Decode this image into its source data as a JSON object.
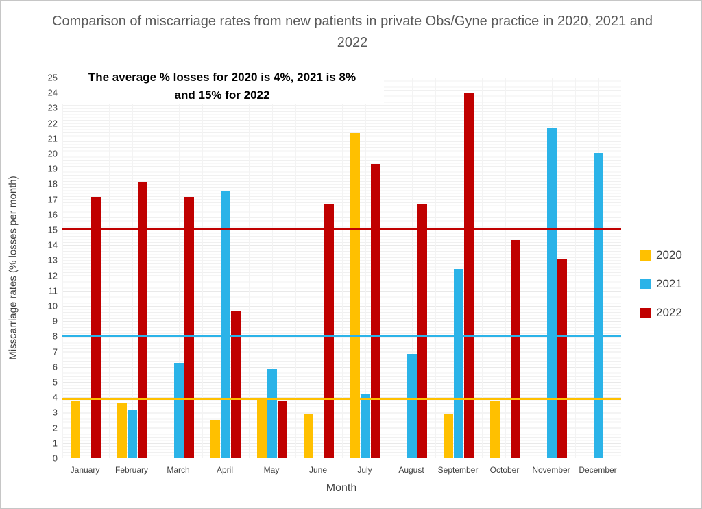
{
  "title": "Comparison of miscarriage rates from new patients in private Obs/Gyne practice in 2020, 2021 and 2022",
  "annotation": {
    "line1": "The average % losses for 2020 is 4%, 2021 is 8%",
    "line2": "and 15% for 2022"
  },
  "xlabel": "Month",
  "ylabel": "Misscarriage rates (% losses per month)",
  "legend": [
    {
      "label": "2020",
      "color": "#FFC000"
    },
    {
      "label": "2021",
      "color": "#2BB3E8"
    },
    {
      "label": "2022",
      "color": "#C00000"
    }
  ],
  "chart_data": {
    "type": "bar",
    "title": "Comparison of miscarriage rates from new patients in private Obs/Gyne practice in 2020, 2021 and 2022",
    "xlabel": "Month",
    "ylabel": "Misscarriage rates (% losses per month)",
    "ylim": [
      0,
      25
    ],
    "ytick_step": 1,
    "grid": true,
    "legend_position": "right",
    "categories": [
      "January",
      "February",
      "March",
      "April",
      "May",
      "June",
      "July",
      "August",
      "September",
      "October",
      "November",
      "December"
    ],
    "series": [
      {
        "name": "2020",
        "color": "#FFC000",
        "values": [
          3.7,
          3.6,
          null,
          2.5,
          3.8,
          2.9,
          21.3,
          null,
          2.9,
          3.7,
          null,
          null
        ]
      },
      {
        "name": "2021",
        "color": "#2BB3E8",
        "values": [
          null,
          3.1,
          6.2,
          17.5,
          5.8,
          null,
          4.2,
          6.8,
          12.4,
          null,
          21.6,
          20.0
        ]
      },
      {
        "name": "2022",
        "color": "#C00000",
        "values": [
          17.1,
          18.1,
          17.1,
          9.6,
          3.7,
          16.6,
          19.3,
          16.6,
          23.9,
          14.3,
          13.0,
          null
        ]
      }
    ],
    "average_lines": [
      {
        "name": "2020 average (4%)",
        "value": 3.85,
        "color": "#FFC000"
      },
      {
        "name": "2021 average (8%)",
        "value": 8.0,
        "color": "#2BB3E8"
      },
      {
        "name": "2022 average (15%)",
        "value": 15.0,
        "color": "#C00000"
      }
    ]
  }
}
